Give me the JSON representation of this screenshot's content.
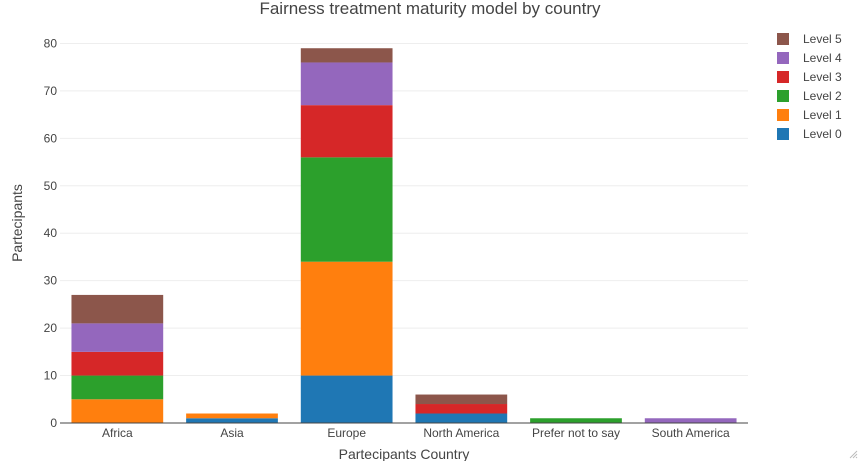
{
  "chart_data": {
    "type": "bar",
    "stacked": true,
    "title": "Fairness treatment maturity model by country",
    "xlabel": "Partecipants Country",
    "ylabel": "Partecipants",
    "ylim": [
      0,
      82
    ],
    "yticks": [
      0,
      10,
      20,
      30,
      40,
      50,
      60,
      70,
      80
    ],
    "grid": true,
    "legend_position": "top-right",
    "categories": [
      "Africa",
      "Asia",
      "Europe",
      "North America",
      "Prefer not to say",
      "South America"
    ],
    "series": [
      {
        "name": "Level 0",
        "color": "#1f77b4",
        "values": [
          0,
          1,
          10,
          2,
          0,
          0
        ]
      },
      {
        "name": "Level 1",
        "color": "#ff7f0e",
        "values": [
          5,
          1,
          24,
          0,
          0,
          0
        ]
      },
      {
        "name": "Level 2",
        "color": "#2ca02c",
        "values": [
          5,
          0,
          22,
          0,
          1,
          0
        ]
      },
      {
        "name": "Level 3",
        "color": "#d62728",
        "values": [
          5,
          0,
          11,
          2,
          0,
          0
        ]
      },
      {
        "name": "Level 4",
        "color": "#9467bd",
        "values": [
          6,
          0,
          9,
          0,
          0,
          1
        ]
      },
      {
        "name": "Level 5",
        "color": "#8c564b",
        "values": [
          6,
          0,
          3,
          2,
          0,
          0
        ]
      }
    ]
  }
}
